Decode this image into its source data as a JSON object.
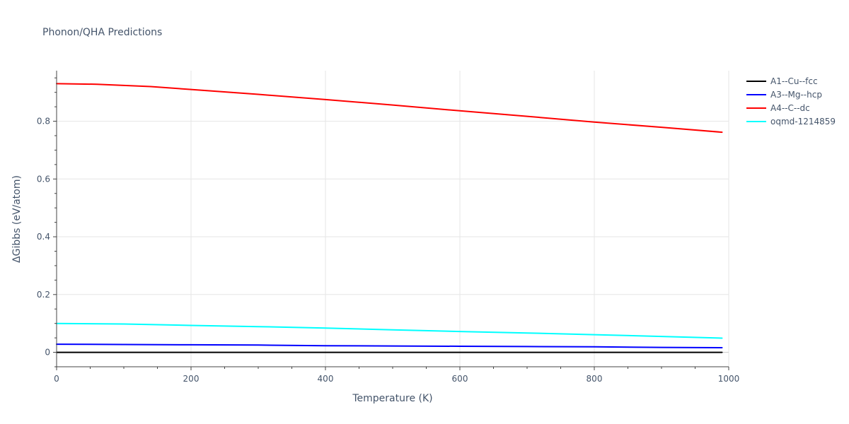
{
  "chart_data": {
    "type": "line",
    "title": "Phonon/QHA Predictions",
    "xlabel": "Temperature (K)",
    "ylabel": "ΔGibbs (eV/atom)",
    "xlim": [
      0,
      1000
    ],
    "ylim": [
      -0.05,
      0.975
    ],
    "x_ticks": [
      0,
      200,
      400,
      600,
      800,
      1000
    ],
    "y_ticks": [
      0,
      0.2,
      0.4,
      0.6,
      0.8
    ],
    "grid": true,
    "legend_position": "right",
    "series": [
      {
        "name": "A1--Cu--fcc",
        "color": "#000000",
        "x": [
          0,
          990
        ],
        "y": [
          0.0,
          0.0
        ]
      },
      {
        "name": "A3--Mg--hcp",
        "color": "#0000ff",
        "x": [
          0,
          100,
          200,
          300,
          400,
          500,
          600,
          700,
          800,
          900,
          990
        ],
        "y": [
          0.028,
          0.027,
          0.026,
          0.025,
          0.023,
          0.022,
          0.021,
          0.02,
          0.019,
          0.017,
          0.016
        ]
      },
      {
        "name": "A4--C--dc",
        "color": "#ff0000",
        "x": [
          0,
          60,
          140,
          200,
          300,
          400,
          500,
          600,
          700,
          800,
          900,
          990
        ],
        "y": [
          0.93,
          0.928,
          0.92,
          0.91,
          0.893,
          0.875,
          0.856,
          0.836,
          0.817,
          0.797,
          0.779,
          0.762
        ]
      },
      {
        "name": "oqmd-1214859",
        "color": "#00ffff",
        "x": [
          0,
          100,
          200,
          300,
          400,
          500,
          600,
          700,
          800,
          900,
          990
        ],
        "y": [
          0.1,
          0.098,
          0.093,
          0.089,
          0.084,
          0.078,
          0.072,
          0.067,
          0.061,
          0.055,
          0.049
        ]
      }
    ]
  }
}
